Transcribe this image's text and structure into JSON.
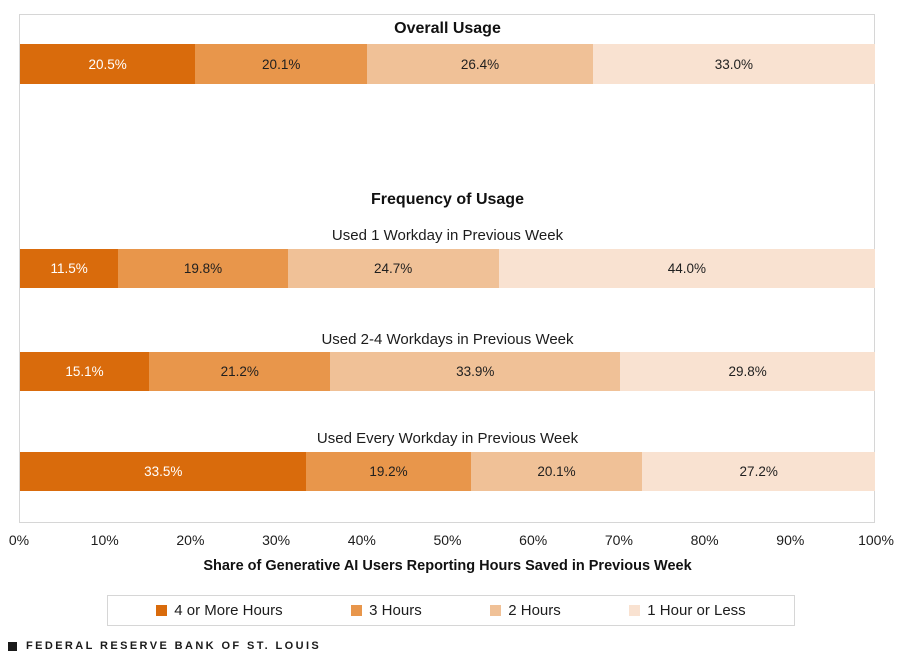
{
  "chart_data": {
    "type": "bar",
    "orientation": "horizontal-stacked",
    "title": "Overall Usage",
    "section_title": "Frequency of Usage",
    "xlabel": "Share of Generative AI Users Reporting Hours Saved in Previous Week",
    "xlim": [
      0,
      100
    ],
    "x_ticks": [
      "0%",
      "10%",
      "20%",
      "30%",
      "40%",
      "50%",
      "60%",
      "70%",
      "80%",
      "90%",
      "100%"
    ],
    "grid": false,
    "legend_position": "bottom",
    "legend": [
      {
        "label": "4 or More Hours",
        "color": "#D96B0C"
      },
      {
        "label": "3 Hours",
        "color": "#E8964B"
      },
      {
        "label": "2 Hours",
        "color": "#F0C197"
      },
      {
        "label": "1 Hour or Less",
        "color": "#F9E2D1"
      }
    ],
    "rows": [
      {
        "heading": "Overall Usage",
        "values": [
          20.5,
          20.1,
          26.4,
          33.0
        ],
        "labels": [
          "20.5%",
          "20.1%",
          "26.4%",
          "33.0%"
        ]
      },
      {
        "heading": "Used 1 Workday in Previous Week",
        "values": [
          11.5,
          19.8,
          24.7,
          44.0
        ],
        "labels": [
          "11.5%",
          "19.8%",
          "24.7%",
          "44.0%"
        ]
      },
      {
        "heading": "Used 2-4 Workdays in Previous Week",
        "values": [
          15.1,
          21.2,
          33.9,
          29.8
        ],
        "labels": [
          "15.1%",
          "21.2%",
          "33.9%",
          "29.8%"
        ]
      },
      {
        "heading": "Used Every Workday in Previous Week",
        "values": [
          33.5,
          19.2,
          20.1,
          27.2
        ],
        "labels": [
          "33.5%",
          "19.2%",
          "20.1%",
          "27.2%"
        ]
      }
    ]
  },
  "footer": {
    "source": "FEDERAL RESERVE BANK OF ST. LOUIS"
  }
}
